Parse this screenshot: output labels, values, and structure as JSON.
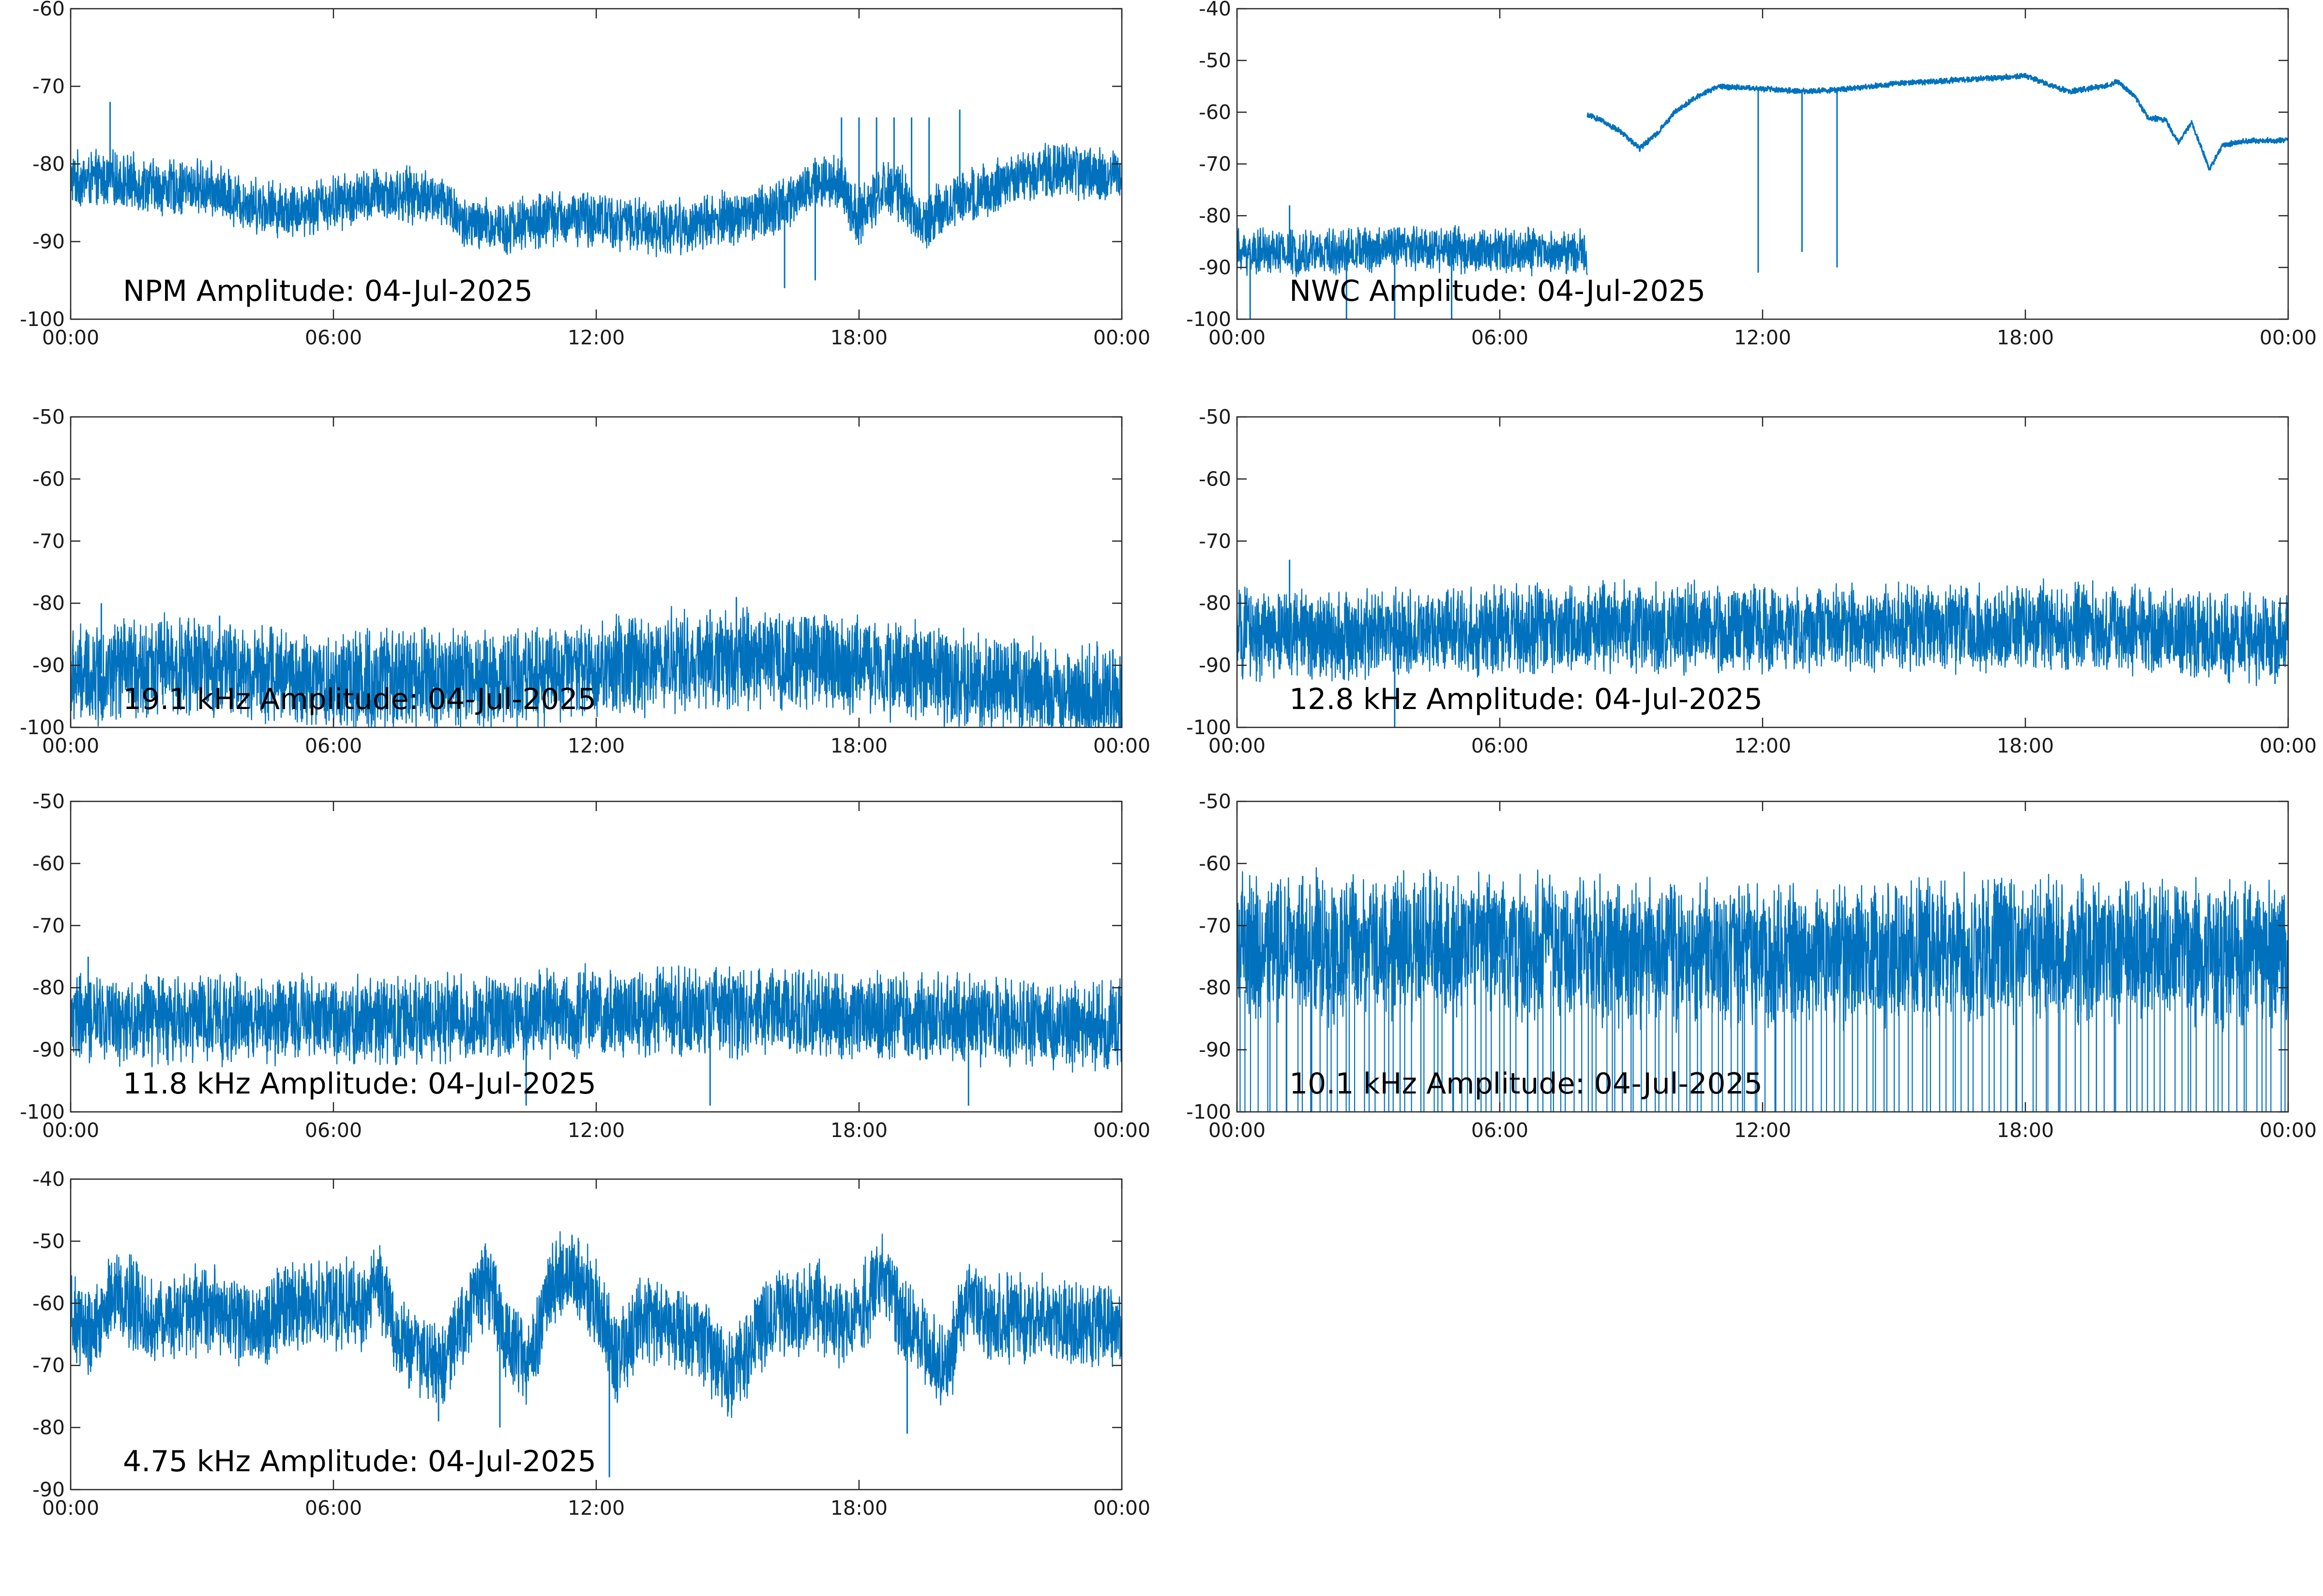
{
  "colors": {
    "signal": "#0072BD",
    "axis": "#262626",
    "text": "#000000"
  },
  "chart_data": [
    {
      "type": "line",
      "title": "NPM Amplitude: 04-Jul-2025",
      "x_ticks": [
        "00:00",
        "06:00",
        "12:00",
        "18:00",
        "00:00"
      ],
      "y_ticks": [
        -60,
        -70,
        -80,
        -90,
        -100
      ],
      "ylim": [
        -100,
        -60
      ],
      "xlim_hours": [
        0,
        24
      ],
      "grid": false,
      "noisy": true,
      "series": [
        {
          "band": 4,
          "x": [
            0,
            1,
            2,
            3,
            4,
            5,
            6,
            7,
            8,
            8.6,
            9,
            10,
            11,
            12,
            13,
            14,
            15,
            16,
            16.8,
            17.5,
            18,
            18.5,
            19,
            19.5,
            20,
            21,
            22,
            23,
            24
          ],
          "y": [
            -82,
            -82,
            -83,
            -83,
            -85,
            -86,
            -85,
            -84,
            -84,
            -85,
            -88,
            -88,
            -87,
            -87,
            -88,
            -88,
            -87,
            -86,
            -83,
            -82,
            -87,
            -83,
            -84,
            -88,
            -85,
            -83,
            -81,
            -81,
            -82
          ]
        }
      ],
      "spikes": [
        {
          "x": 0.9,
          "y": -72
        },
        {
          "x": 17.6,
          "y": -74
        },
        {
          "x": 18,
          "y": -74
        },
        {
          "x": 18.4,
          "y": -74
        },
        {
          "x": 18.8,
          "y": -74
        },
        {
          "x": 19.2,
          "y": -74
        },
        {
          "x": 19.6,
          "y": -74
        },
        {
          "x": 20.3,
          "y": -73
        },
        {
          "x": 16.3,
          "y": -96
        },
        {
          "x": 17,
          "y": -95
        }
      ]
    },
    {
      "type": "line",
      "title": "NWC Amplitude: 04-Jul-2025",
      "x_ticks": [
        "00:00",
        "06:00",
        "12:00",
        "18:00",
        "00:00"
      ],
      "y_ticks": [
        -40,
        -50,
        -60,
        -70,
        -80,
        -90,
        -100
      ],
      "ylim": [
        -100,
        -40
      ],
      "xlim_hours": [
        0,
        24
      ],
      "grid": false,
      "noisy": true,
      "series": [
        {
          "band": 5,
          "x": [
            0,
            2,
            4,
            6,
            8
          ],
          "y": [
            -87,
            -87,
            -86,
            -87,
            -87
          ]
        },
        {
          "band": 0.6,
          "x": [
            8,
            8.3,
            8.8,
            9.2,
            9.6,
            10,
            10.5,
            11,
            12,
            13,
            14,
            15,
            16,
            17,
            18,
            18.5,
            19,
            19.8,
            20.1,
            20.5,
            20.8,
            21.2,
            21.5,
            21.8,
            22.2,
            22.5,
            23,
            24
          ],
          "y": [
            -60.5,
            -61.5,
            -64,
            -67,
            -64,
            -60,
            -57,
            -55,
            -55.5,
            -56,
            -55.5,
            -54.5,
            -54,
            -53.5,
            -53,
            -54.5,
            -56,
            -55,
            -54,
            -57,
            -61,
            -61.5,
            -66,
            -62,
            -71,
            -66.5,
            -65.5,
            -65.5
          ]
        }
      ],
      "spikes": [
        {
          "x": 11.9,
          "y": -91
        },
        {
          "x": 12.9,
          "y": -87
        },
        {
          "x": 13.7,
          "y": -90
        },
        {
          "x": 0.3,
          "y": -100
        },
        {
          "x": 1.2,
          "y": -78
        },
        {
          "x": 2.5,
          "y": -100
        },
        {
          "x": 3.6,
          "y": -100
        },
        {
          "x": 4.9,
          "y": -100
        }
      ]
    },
    {
      "type": "line",
      "title": "19.1 kHz Amplitude: 04-Jul-2025",
      "x_ticks": [
        "00:00",
        "06:00",
        "12:00",
        "18:00",
        "00:00"
      ],
      "y_ticks": [
        -50,
        -60,
        -70,
        -80,
        -90,
        -100
      ],
      "ylim": [
        -100,
        -50
      ],
      "xlim_hours": [
        0,
        24
      ],
      "grid": false,
      "noisy": true,
      "series": [
        {
          "band": 9,
          "x": [
            0,
            2,
            4,
            6,
            8,
            10,
            12,
            14,
            16,
            17,
            18,
            20,
            22,
            24
          ],
          "y": [
            -92,
            -90,
            -91,
            -93,
            -92,
            -92,
            -91,
            -89,
            -89,
            -89,
            -90,
            -92,
            -94,
            -95
          ]
        }
      ],
      "spikes": [
        {
          "x": 0.7,
          "y": -80
        },
        {
          "x": 3.4,
          "y": -82
        },
        {
          "x": 15.2,
          "y": -79
        },
        {
          "x": 14.6,
          "y": -81
        }
      ]
    },
    {
      "type": "line",
      "title": "12.8 kHz Amplitude: 04-Jul-2025",
      "x_ticks": [
        "00:00",
        "06:00",
        "12:00",
        "18:00",
        "00:00"
      ],
      "y_ticks": [
        -50,
        -60,
        -70,
        -80,
        -90,
        -100
      ],
      "ylim": [
        -100,
        -50
      ],
      "xlim_hours": [
        0,
        24
      ],
      "grid": false,
      "noisy": true,
      "series": [
        {
          "band": 8,
          "x": [
            0,
            4,
            8,
            12,
            16,
            20,
            24
          ],
          "y": [
            -85,
            -85,
            -84,
            -84,
            -84,
            -84,
            -86
          ]
        }
      ],
      "spikes": [
        {
          "x": 1.2,
          "y": -73
        },
        {
          "x": 3.6,
          "y": -100
        },
        {
          "x": 23.7,
          "y": -93
        }
      ]
    },
    {
      "type": "line",
      "title": "11.8 kHz Amplitude: 04-Jul-2025",
      "x_ticks": [
        "00:00",
        "06:00",
        "12:00",
        "18:00",
        "00:00"
      ],
      "y_ticks": [
        -50,
        -60,
        -70,
        -80,
        -90,
        -100
      ],
      "ylim": [
        -100,
        -50
      ],
      "xlim_hours": [
        0,
        24
      ],
      "grid": false,
      "noisy": true,
      "series": [
        {
          "band": 8,
          "x": [
            0,
            4,
            8,
            12,
            16,
            20,
            24
          ],
          "y": [
            -85,
            -85,
            -85,
            -84,
            -84,
            -85,
            -86
          ]
        }
      ],
      "spikes": [
        {
          "x": 0.4,
          "y": -75
        },
        {
          "x": 10.4,
          "y": -99
        },
        {
          "x": 14.6,
          "y": -99
        },
        {
          "x": 20.5,
          "y": -99
        }
      ]
    },
    {
      "type": "line",
      "title": "10.1 kHz Amplitude: 04-Jul-2025",
      "x_ticks": [
        "00:00",
        "06:00",
        "12:00",
        "18:00",
        "00:00"
      ],
      "y_ticks": [
        -50,
        -60,
        -70,
        -80,
        -90,
        -100
      ],
      "ylim": [
        -100,
        -50
      ],
      "xlim_hours": [
        0,
        24
      ],
      "grid": false,
      "noisy": true,
      "series": [
        {
          "band": 13,
          "x": [
            0,
            4,
            8,
            12,
            16,
            20,
            24
          ],
          "y": [
            -74,
            -73,
            -74,
            -75,
            -74,
            -74,
            -75
          ]
        }
      ],
      "dropouts": {
        "count": 170,
        "y": -100
      },
      "spikes": [
        {
          "x": 1.5,
          "y": -62
        },
        {
          "x": 4.4,
          "y": -62
        }
      ]
    },
    {
      "type": "line",
      "title": "4.75 kHz Amplitude: 04-Jul-2025",
      "x_ticks": [
        "00:00",
        "06:00",
        "12:00",
        "18:00",
        "00:00"
      ],
      "y_ticks": [
        -40,
        -50,
        -60,
        -70,
        -80,
        -90
      ],
      "ylim": [
        -90,
        -40
      ],
      "xlim_hours": [
        0,
        24
      ],
      "grid": false,
      "noisy": true,
      "series": [
        {
          "band": 8,
          "x": [
            0,
            0.5,
            1,
            2,
            3,
            4,
            5,
            6,
            6.8,
            7,
            7.5,
            8,
            8.5,
            9,
            9.5,
            10,
            10.5,
            11,
            11.5,
            12,
            12.5,
            13,
            14,
            14.5,
            15,
            15.5,
            16,
            17,
            17.5,
            18,
            18.5,
            19,
            19.5,
            20,
            20.5,
            21,
            22,
            23,
            24
          ],
          "y": [
            -62,
            -65,
            -58,
            -63,
            -61,
            -63,
            -61,
            -60,
            -60,
            -56,
            -66,
            -68,
            -70,
            -62,
            -57,
            -66,
            -70,
            -56,
            -55,
            -60,
            -70,
            -62,
            -65,
            -66,
            -72,
            -67,
            -62,
            -60,
            -63,
            -62,
            -55,
            -63,
            -66,
            -70,
            -59,
            -63,
            -62,
            -63,
            -64
          ]
        }
      ],
      "spikes": [
        {
          "x": 12.3,
          "y": -88
        },
        {
          "x": 19.1,
          "y": -81
        },
        {
          "x": 8.4,
          "y": -79
        },
        {
          "x": 9.8,
          "y": -80
        },
        {
          "x": 11.6,
          "y": -50
        }
      ]
    }
  ]
}
